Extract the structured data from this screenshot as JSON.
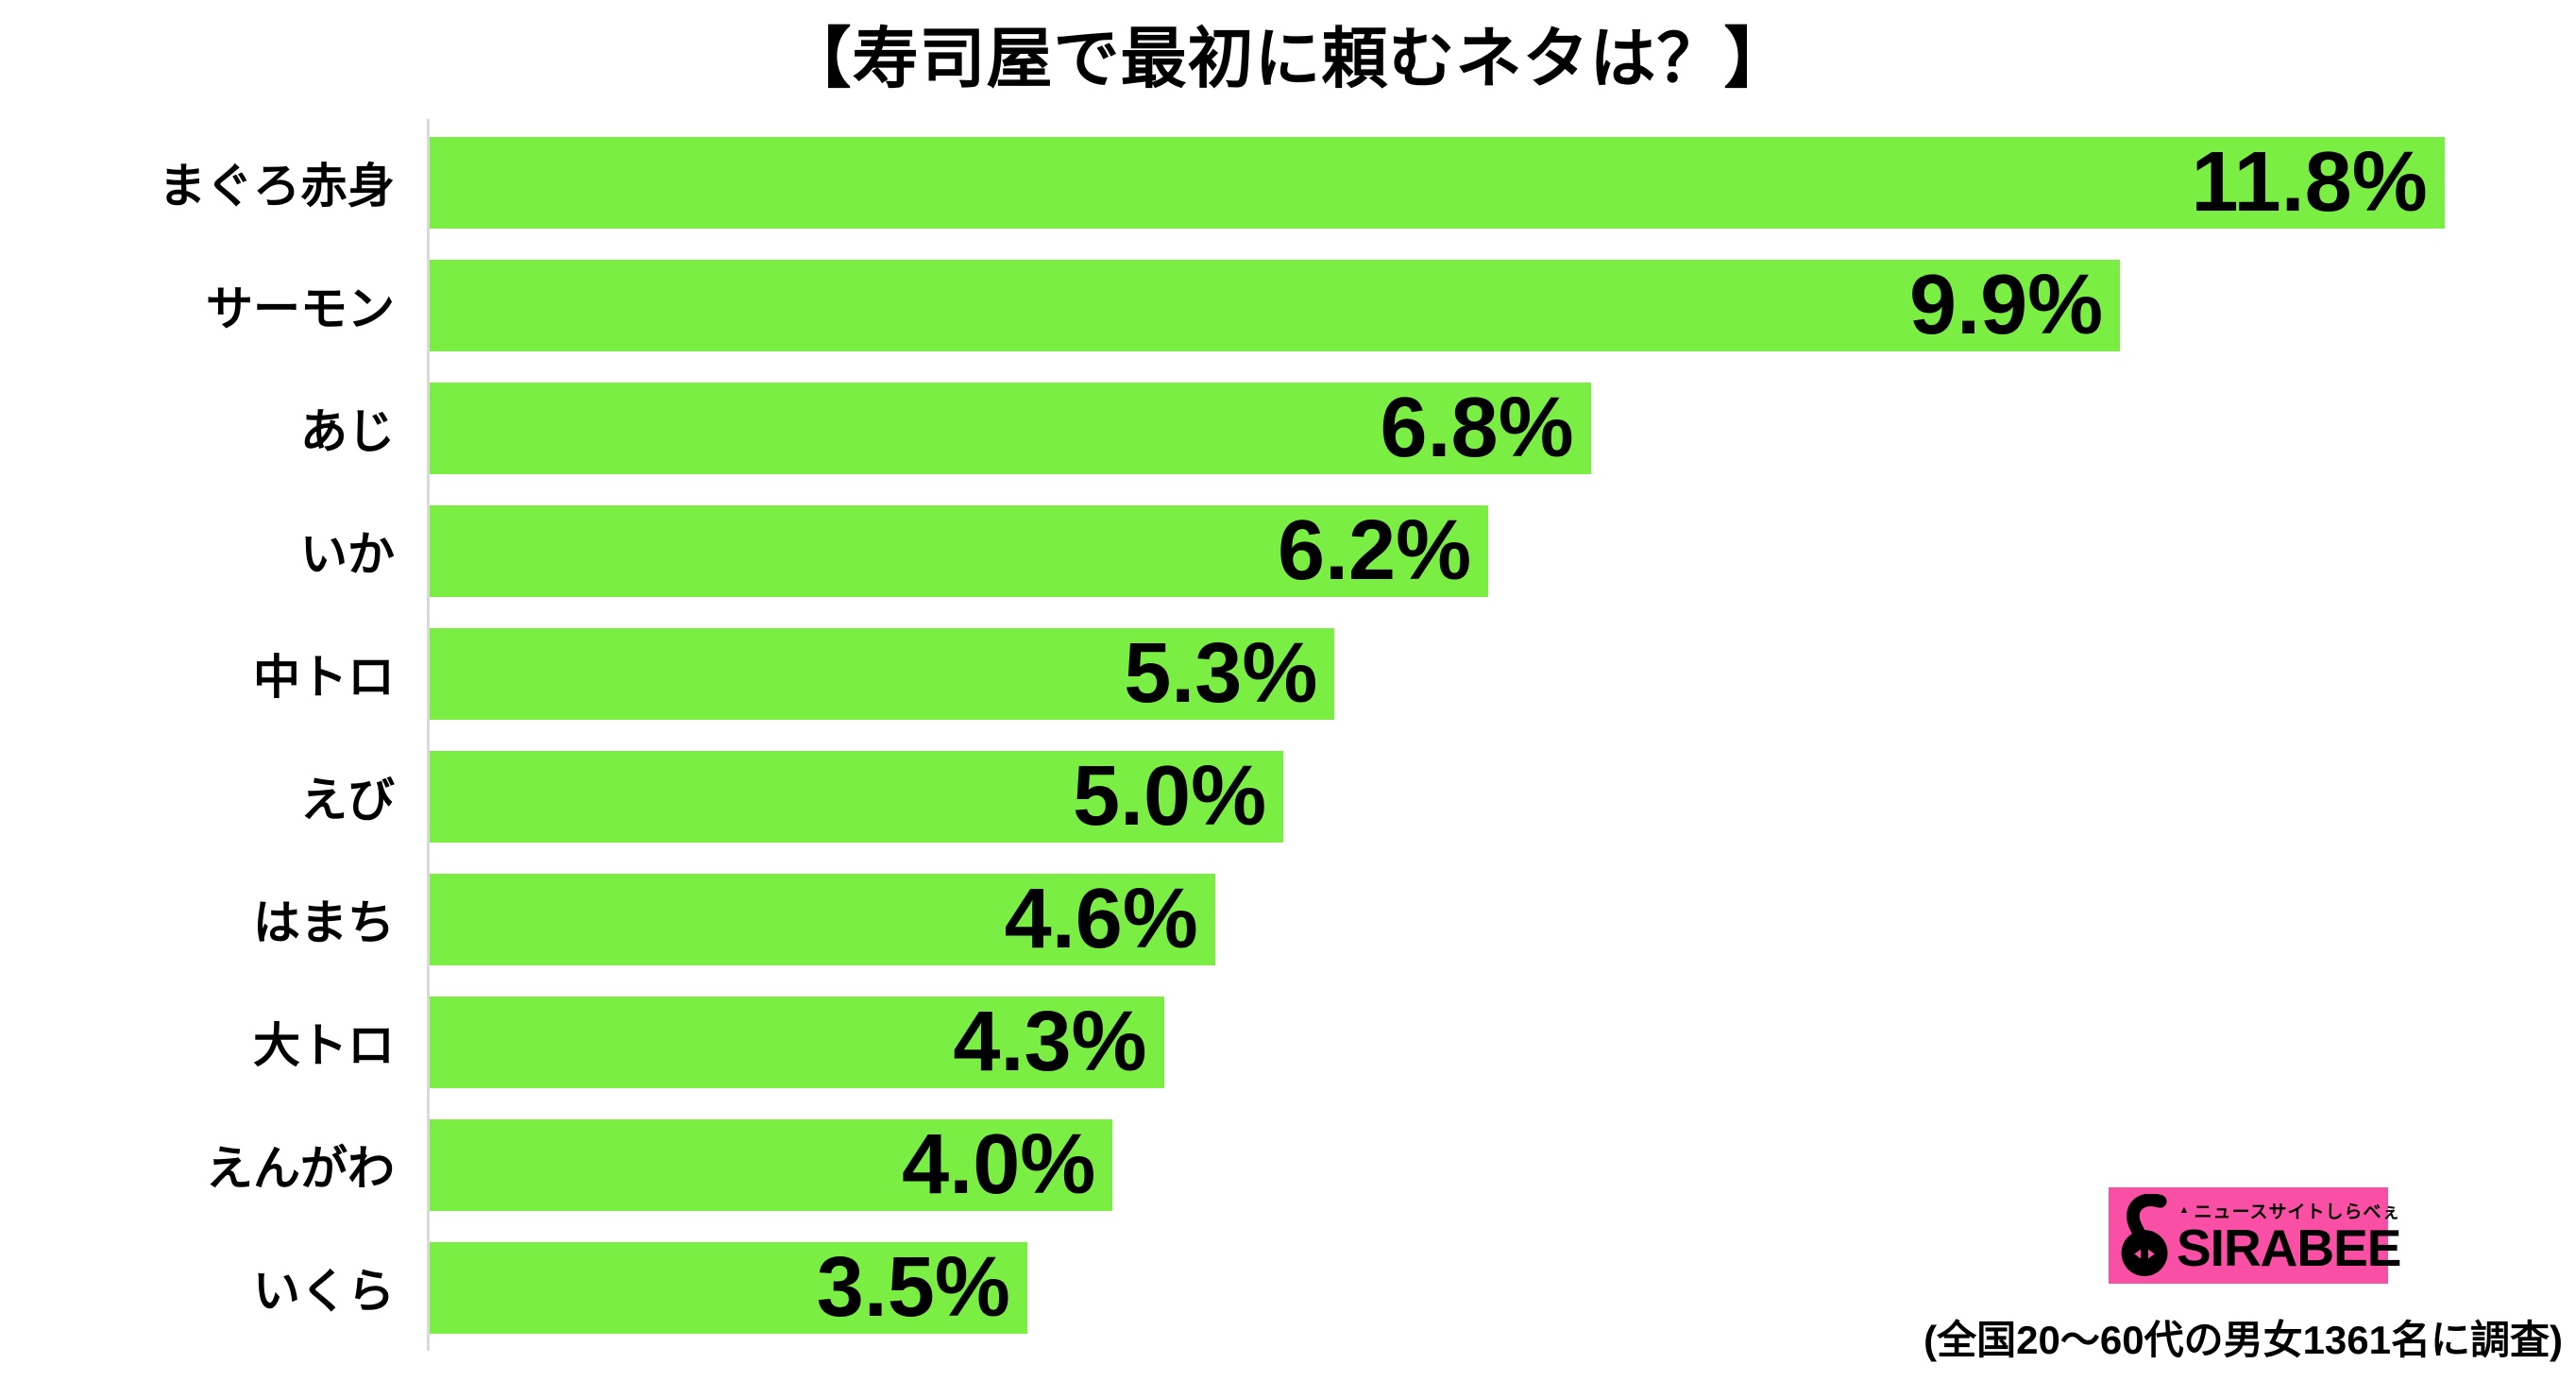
{
  "page": {
    "background": "#FFFFFF"
  },
  "title": "【寿司屋で最初に頼むネタは？】",
  "chart_data": {
    "type": "bar",
    "orientation": "horizontal",
    "title": "【寿司屋で最初に頼むネタは？】",
    "categories": [
      "まぐろ赤身",
      "サーモン",
      "あじ",
      "いか",
      "中トロ",
      "えび",
      "はまち",
      "大トロ",
      "えんがわ",
      "いくら"
    ],
    "values": [
      11.8,
      9.9,
      6.8,
      6.2,
      5.3,
      5.0,
      4.6,
      4.3,
      4.0,
      3.5
    ],
    "value_labels": [
      "11.8%",
      "9.9%",
      "6.8%",
      "6.2%",
      "5.3%",
      "5.0%",
      "4.6%",
      "4.3%",
      "4.0%",
      "3.5%"
    ],
    "xlim": [
      0,
      12.57
    ],
    "grid": false,
    "legend": false,
    "bar_color": "#7BEE44",
    "axis_line_color": "#D9D9D9",
    "text_color": "#000000"
  },
  "footer": {
    "survey_note": "(全国20〜60代の男女1361名に調査)"
  },
  "logo": {
    "tagline": "ニュースサイトしらべぇ",
    "brand": "SIRABEE",
    "bg_color": "#F94FA5",
    "triangle_icon": "▲"
  }
}
